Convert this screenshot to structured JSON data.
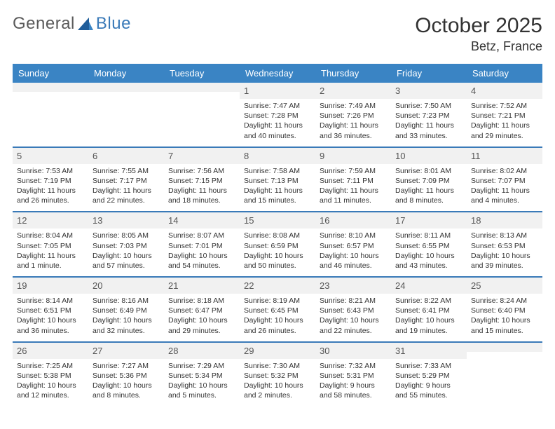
{
  "logo": {
    "general": "General",
    "blue": "Blue"
  },
  "title": "October 2025",
  "location": "Betz, France",
  "day_names": [
    "Sunday",
    "Monday",
    "Tuesday",
    "Wednesday",
    "Thursday",
    "Friday",
    "Saturday"
  ],
  "colors": {
    "header_bg": "#3a84c4",
    "header_text": "#ffffff",
    "stripe_bg": "#f1f1f1",
    "divider": "#3a7ab8",
    "text": "#333333",
    "daynum": "#555555",
    "logo_grey": "#5a5a5a",
    "logo_blue": "#3a7ab8"
  },
  "weeks": [
    [
      {
        "day": "",
        "sunrise": "",
        "sunset": "",
        "daylight": ""
      },
      {
        "day": "",
        "sunrise": "",
        "sunset": "",
        "daylight": ""
      },
      {
        "day": "",
        "sunrise": "",
        "sunset": "",
        "daylight": ""
      },
      {
        "day": "1",
        "sunrise": "Sunrise: 7:47 AM",
        "sunset": "Sunset: 7:28 PM",
        "daylight": "Daylight: 11 hours and 40 minutes."
      },
      {
        "day": "2",
        "sunrise": "Sunrise: 7:49 AM",
        "sunset": "Sunset: 7:26 PM",
        "daylight": "Daylight: 11 hours and 36 minutes."
      },
      {
        "day": "3",
        "sunrise": "Sunrise: 7:50 AM",
        "sunset": "Sunset: 7:23 PM",
        "daylight": "Daylight: 11 hours and 33 minutes."
      },
      {
        "day": "4",
        "sunrise": "Sunrise: 7:52 AM",
        "sunset": "Sunset: 7:21 PM",
        "daylight": "Daylight: 11 hours and 29 minutes."
      }
    ],
    [
      {
        "day": "5",
        "sunrise": "Sunrise: 7:53 AM",
        "sunset": "Sunset: 7:19 PM",
        "daylight": "Daylight: 11 hours and 26 minutes."
      },
      {
        "day": "6",
        "sunrise": "Sunrise: 7:55 AM",
        "sunset": "Sunset: 7:17 PM",
        "daylight": "Daylight: 11 hours and 22 minutes."
      },
      {
        "day": "7",
        "sunrise": "Sunrise: 7:56 AM",
        "sunset": "Sunset: 7:15 PM",
        "daylight": "Daylight: 11 hours and 18 minutes."
      },
      {
        "day": "8",
        "sunrise": "Sunrise: 7:58 AM",
        "sunset": "Sunset: 7:13 PM",
        "daylight": "Daylight: 11 hours and 15 minutes."
      },
      {
        "day": "9",
        "sunrise": "Sunrise: 7:59 AM",
        "sunset": "Sunset: 7:11 PM",
        "daylight": "Daylight: 11 hours and 11 minutes."
      },
      {
        "day": "10",
        "sunrise": "Sunrise: 8:01 AM",
        "sunset": "Sunset: 7:09 PM",
        "daylight": "Daylight: 11 hours and 8 minutes."
      },
      {
        "day": "11",
        "sunrise": "Sunrise: 8:02 AM",
        "sunset": "Sunset: 7:07 PM",
        "daylight": "Daylight: 11 hours and 4 minutes."
      }
    ],
    [
      {
        "day": "12",
        "sunrise": "Sunrise: 8:04 AM",
        "sunset": "Sunset: 7:05 PM",
        "daylight": "Daylight: 11 hours and 1 minute."
      },
      {
        "day": "13",
        "sunrise": "Sunrise: 8:05 AM",
        "sunset": "Sunset: 7:03 PM",
        "daylight": "Daylight: 10 hours and 57 minutes."
      },
      {
        "day": "14",
        "sunrise": "Sunrise: 8:07 AM",
        "sunset": "Sunset: 7:01 PM",
        "daylight": "Daylight: 10 hours and 54 minutes."
      },
      {
        "day": "15",
        "sunrise": "Sunrise: 8:08 AM",
        "sunset": "Sunset: 6:59 PM",
        "daylight": "Daylight: 10 hours and 50 minutes."
      },
      {
        "day": "16",
        "sunrise": "Sunrise: 8:10 AM",
        "sunset": "Sunset: 6:57 PM",
        "daylight": "Daylight: 10 hours and 46 minutes."
      },
      {
        "day": "17",
        "sunrise": "Sunrise: 8:11 AM",
        "sunset": "Sunset: 6:55 PM",
        "daylight": "Daylight: 10 hours and 43 minutes."
      },
      {
        "day": "18",
        "sunrise": "Sunrise: 8:13 AM",
        "sunset": "Sunset: 6:53 PM",
        "daylight": "Daylight: 10 hours and 39 minutes."
      }
    ],
    [
      {
        "day": "19",
        "sunrise": "Sunrise: 8:14 AM",
        "sunset": "Sunset: 6:51 PM",
        "daylight": "Daylight: 10 hours and 36 minutes."
      },
      {
        "day": "20",
        "sunrise": "Sunrise: 8:16 AM",
        "sunset": "Sunset: 6:49 PM",
        "daylight": "Daylight: 10 hours and 32 minutes."
      },
      {
        "day": "21",
        "sunrise": "Sunrise: 8:18 AM",
        "sunset": "Sunset: 6:47 PM",
        "daylight": "Daylight: 10 hours and 29 minutes."
      },
      {
        "day": "22",
        "sunrise": "Sunrise: 8:19 AM",
        "sunset": "Sunset: 6:45 PM",
        "daylight": "Daylight: 10 hours and 26 minutes."
      },
      {
        "day": "23",
        "sunrise": "Sunrise: 8:21 AM",
        "sunset": "Sunset: 6:43 PM",
        "daylight": "Daylight: 10 hours and 22 minutes."
      },
      {
        "day": "24",
        "sunrise": "Sunrise: 8:22 AM",
        "sunset": "Sunset: 6:41 PM",
        "daylight": "Daylight: 10 hours and 19 minutes."
      },
      {
        "day": "25",
        "sunrise": "Sunrise: 8:24 AM",
        "sunset": "Sunset: 6:40 PM",
        "daylight": "Daylight: 10 hours and 15 minutes."
      }
    ],
    [
      {
        "day": "26",
        "sunrise": "Sunrise: 7:25 AM",
        "sunset": "Sunset: 5:38 PM",
        "daylight": "Daylight: 10 hours and 12 minutes."
      },
      {
        "day": "27",
        "sunrise": "Sunrise: 7:27 AM",
        "sunset": "Sunset: 5:36 PM",
        "daylight": "Daylight: 10 hours and 8 minutes."
      },
      {
        "day": "28",
        "sunrise": "Sunrise: 7:29 AM",
        "sunset": "Sunset: 5:34 PM",
        "daylight": "Daylight: 10 hours and 5 minutes."
      },
      {
        "day": "29",
        "sunrise": "Sunrise: 7:30 AM",
        "sunset": "Sunset: 5:32 PM",
        "daylight": "Daylight: 10 hours and 2 minutes."
      },
      {
        "day": "30",
        "sunrise": "Sunrise: 7:32 AM",
        "sunset": "Sunset: 5:31 PM",
        "daylight": "Daylight: 9 hours and 58 minutes."
      },
      {
        "day": "31",
        "sunrise": "Sunrise: 7:33 AM",
        "sunset": "Sunset: 5:29 PM",
        "daylight": "Daylight: 9 hours and 55 minutes."
      },
      {
        "day": "",
        "sunrise": "",
        "sunset": "",
        "daylight": ""
      }
    ]
  ]
}
